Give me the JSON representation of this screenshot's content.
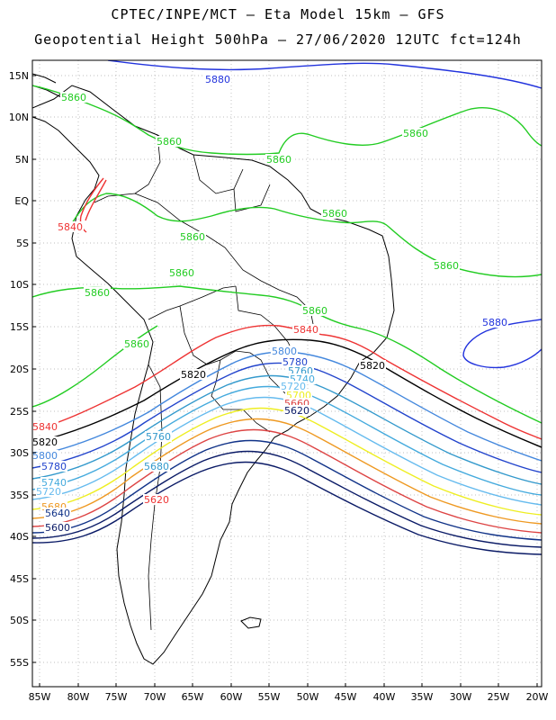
{
  "title": {
    "line1": "CPTEC/INPE/MCT –  Eta Model 15km – GFS",
    "line2": "Geopotential Height 500hPa – 27/06/2020 12UTC fct=124h"
  },
  "axes": {
    "lat_ticks": [
      "15N",
      "10N",
      "5N",
      "EQ",
      "5S",
      "10S",
      "15S",
      "20S",
      "25S",
      "30S",
      "35S",
      "40S",
      "45S",
      "50S",
      "55S"
    ],
    "lon_ticks": [
      "85W",
      "80W",
      "75W",
      "70W",
      "65W",
      "60W",
      "55W",
      "50W",
      "45W",
      "40W",
      "35W",
      "30W",
      "25W",
      "20W"
    ]
  },
  "contours": {
    "levels": [
      {
        "value": "5880",
        "color": "#2233dd"
      },
      {
        "value": "5860",
        "color": "#22cc22"
      },
      {
        "value": "5840",
        "color": "#ee3333"
      },
      {
        "value": "5820",
        "color": "#000000"
      },
      {
        "value": "5800",
        "color": "#4488dd"
      },
      {
        "value": "5780",
        "color": "#2244cc"
      },
      {
        "value": "5760",
        "color": "#3399cc"
      },
      {
        "value": "5740",
        "color": "#44aadd"
      },
      {
        "value": "5720",
        "color": "#66bbee"
      },
      {
        "value": "5700",
        "color": "#eeee22"
      },
      {
        "value": "5680",
        "color": "#ee9922"
      },
      {
        "value": "5660",
        "color": "#dd4444"
      },
      {
        "value": "5640",
        "color": "#113388"
      },
      {
        "value": "5620",
        "color": "#0a1a66"
      },
      {
        "value": "5600",
        "color": "#0a1a66"
      }
    ],
    "labels": [
      {
        "text": "5880",
        "color": "#2233dd"
      },
      {
        "text": "5880",
        "color": "#2233dd"
      },
      {
        "text": "5860",
        "color": "#22cc22"
      },
      {
        "text": "5860",
        "color": "#22cc22"
      },
      {
        "text": "5860",
        "color": "#22cc22"
      },
      {
        "text": "5860",
        "color": "#22cc22"
      },
      {
        "text": "5860",
        "color": "#22cc22"
      },
      {
        "text": "5860",
        "color": "#22cc22"
      },
      {
        "text": "5860",
        "color": "#22cc22"
      },
      {
        "text": "5860",
        "color": "#22cc22"
      },
      {
        "text": "5860",
        "color": "#22cc22"
      },
      {
        "text": "5860",
        "color": "#22cc22"
      },
      {
        "text": "5860",
        "color": "#22cc22"
      },
      {
        "text": "5840",
        "color": "#ee3333"
      },
      {
        "text": "5840",
        "color": "#ee3333"
      },
      {
        "text": "5840",
        "color": "#ee3333"
      },
      {
        "text": "5820",
        "color": "#000000"
      },
      {
        "text": "5820",
        "color": "#000000"
      },
      {
        "text": "5820",
        "color": "#000000"
      },
      {
        "text": "5800",
        "color": "#4488dd"
      },
      {
        "text": "5800",
        "color": "#4488dd"
      },
      {
        "text": "5780",
        "color": "#2244cc"
      },
      {
        "text": "5780",
        "color": "#2244cc"
      },
      {
        "text": "5760",
        "color": "#3399cc"
      },
      {
        "text": "5760",
        "color": "#3399cc"
      },
      {
        "text": "5740",
        "color": "#44aadd"
      },
      {
        "text": "5740",
        "color": "#44aadd"
      },
      {
        "text": "5720",
        "color": "#66bbee"
      },
      {
        "text": "5720",
        "color": "#66bbee"
      },
      {
        "text": "5700",
        "color": "#eeee22"
      },
      {
        "text": "5700",
        "color": "#eeee22"
      },
      {
        "text": "5680",
        "color": "#ee9922"
      },
      {
        "text": "5680",
        "color": "#3399cc"
      },
      {
        "text": "5660",
        "color": "#dd4444"
      },
      {
        "text": "5640",
        "color": "#113388"
      },
      {
        "text": "5620",
        "color": "#ee3333"
      },
      {
        "text": "5620",
        "color": "#0a1a66"
      },
      {
        "text": "5600",
        "color": "#0a1a66"
      }
    ]
  }
}
